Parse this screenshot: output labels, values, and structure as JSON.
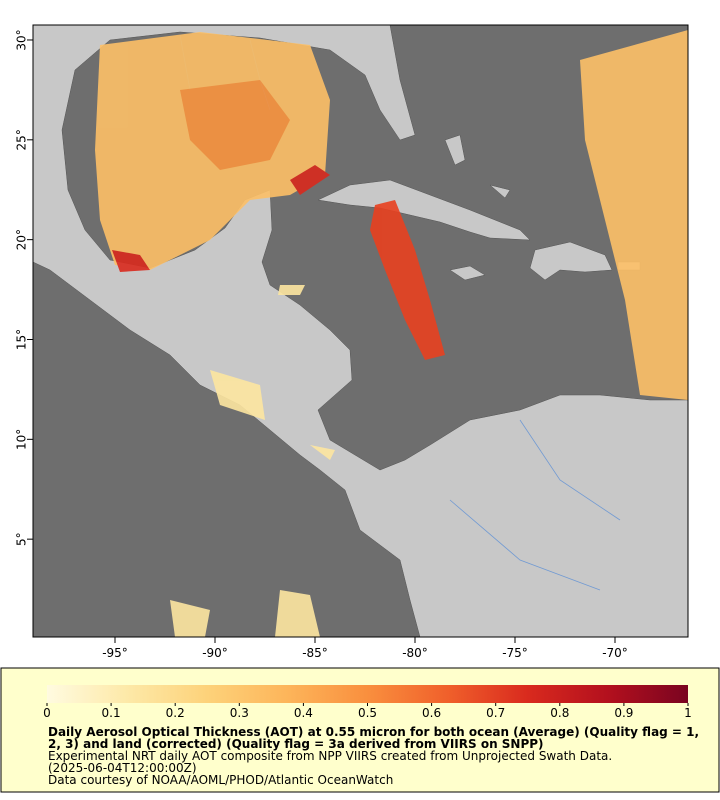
{
  "chart_data": {
    "type": "map",
    "xlim": [
      -99.1,
      -66.35
    ],
    "ylim": [
      0.1,
      30.75
    ],
    "xticks": [
      {
        "value": -95,
        "label": "-95°"
      },
      {
        "value": -90,
        "label": "-90°"
      },
      {
        "value": -85,
        "label": "-85°"
      },
      {
        "value": -80,
        "label": "-80°"
      },
      {
        "value": -75,
        "label": "-75°"
      },
      {
        "value": -70,
        "label": "-70°"
      }
    ],
    "yticks": [
      {
        "value": 5,
        "label": "5°"
      },
      {
        "value": 10,
        "label": "10°"
      },
      {
        "value": 15,
        "label": "15°"
      },
      {
        "value": 20,
        "label": "20°"
      },
      {
        "value": 25,
        "label": "25°"
      },
      {
        "value": 30,
        "label": "30°"
      }
    ],
    "colorbar": {
      "range": [
        0,
        1
      ],
      "ticks": [
        0,
        0.1,
        0.2,
        0.3,
        0.4,
        0.5,
        0.6,
        0.7,
        0.8,
        0.9,
        1
      ],
      "colors": [
        "#fffbe0",
        "#fde9a8",
        "#fdd27a",
        "#fdb55a",
        "#f98f3e",
        "#f0602b",
        "#d92a1e",
        "#b3101e",
        "#7a0420"
      ]
    },
    "title": [
      "Daily Aerosol Optical Thickness (AOT) at 0.55 micron for both ocean (Average) (Quality flag = 1,",
      "2, 3) and land (corrected) (Quality flag = 3a derived from VIIRS on SNPP)"
    ],
    "notes": [
      "Experimental NRT daily AOT composite from NPP VIIRS created from Unprojected Swath Data.",
      "(2025-06-04T12:00:00Z)",
      "Data courtesy of NOAA/AOML/PHOD/Atlantic OceanWatch"
    ]
  }
}
